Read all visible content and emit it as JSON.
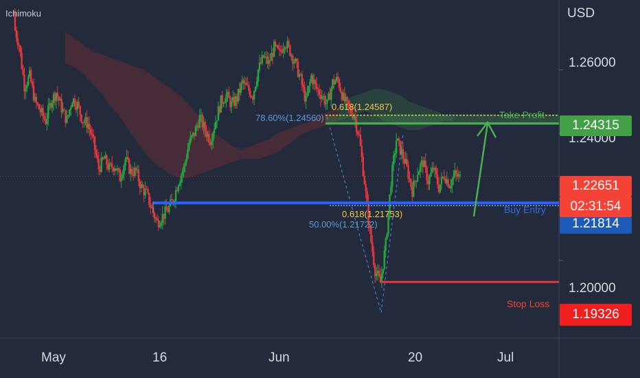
{
  "indicator_label": "Ichimoku",
  "currency": "USD",
  "chart_data": {
    "type": "candlestick",
    "symbol_unit": "USD",
    "indicator": "Ichimoku",
    "y_ticks": [
      "1.26000",
      "1.24000",
      "1.20000"
    ],
    "y_tick_values": [
      1.26,
      1.24,
      1.2
    ],
    "x_ticks": [
      "May",
      "16",
      "Jun",
      "20",
      "Jul"
    ],
    "ylim": [
      1.176,
      1.282
    ],
    "price_tags": {
      "take_profit": "1.24315",
      "current_price": "1.22651",
      "countdown": "02:31:54",
      "buy_entry": "1.21814",
      "stop_loss": "1.19326"
    },
    "levels": [
      {
        "name": "Take Profit",
        "value": 1.24315,
        "color": "#4caf50"
      },
      {
        "name": "Buy Entry",
        "value": 1.21814,
        "color": "#2962ff"
      },
      {
        "name": "Stop Loss",
        "value": 1.19326,
        "color": "#e53935"
      }
    ],
    "current_price": 1.22651,
    "annotations": {
      "fib_top": "0.618(1.24587)",
      "fib_top_pct": "78.60%(1.24560)",
      "fib_mid": "0.618(1.21753)",
      "fib_mid_pct": "50.00%(1.21722)",
      "take_profit": "Take Profit",
      "buy_entry": "Buy Entry",
      "stop_loss": "Stop Loss"
    },
    "close_path": [
      1.274,
      1.268,
      1.255,
      1.258,
      1.25,
      1.247,
      1.244,
      1.25,
      1.253,
      1.248,
      1.244,
      1.251,
      1.249,
      1.244,
      1.243,
      1.237,
      1.229,
      1.232,
      1.229,
      1.23,
      1.226,
      1.232,
      1.228,
      1.228,
      1.223,
      1.221,
      1.216,
      1.212,
      1.214,
      1.216,
      1.219,
      1.225,
      1.229,
      1.237,
      1.24,
      1.245,
      1.241,
      1.238,
      1.244,
      1.25,
      1.252,
      1.249,
      1.251,
      1.256,
      1.254,
      1.252,
      1.26,
      1.264,
      1.262,
      1.267,
      1.265,
      1.269,
      1.266,
      1.262,
      1.257,
      1.25,
      1.258,
      1.254,
      1.252,
      1.249,
      1.256,
      1.257,
      1.251,
      1.248,
      1.246,
      1.239,
      1.225,
      1.209,
      1.197,
      1.193,
      1.205,
      1.225,
      1.238,
      1.234,
      1.229,
      1.222,
      1.228,
      1.231,
      1.225,
      1.229,
      1.223,
      1.227,
      1.224,
      1.227,
      1.226
    ],
    "cloud_upper": [
      1.272,
      1.27,
      1.268,
      1.266,
      1.265,
      1.264,
      1.263,
      1.262,
      1.261,
      1.26,
      1.258,
      1.256,
      1.254,
      1.252,
      1.249,
      1.246,
      1.243,
      1.24,
      1.238,
      1.236,
      1.235,
      1.236,
      1.237,
      1.238,
      1.24,
      1.241,
      1.242,
      1.243,
      1.244,
      1.246,
      1.247,
      1.248,
      1.251,
      1.252,
      1.253,
      1.254,
      1.254,
      1.253,
      1.252,
      1.25,
      1.249,
      1.248,
      1.247,
      1.246,
      1.245
    ],
    "cloud_lower": [
      1.262,
      1.261,
      1.259,
      1.256,
      1.253,
      1.249,
      1.246,
      1.242,
      1.238,
      1.234,
      1.231,
      1.229,
      1.227,
      1.226,
      1.226,
      1.227,
      1.228,
      1.229,
      1.23,
      1.231,
      1.232,
      1.232,
      1.232,
      1.233,
      1.234,
      1.236,
      1.238,
      1.24,
      1.241,
      1.242,
      1.243,
      1.244,
      1.245,
      1.246,
      1.247,
      1.246,
      1.244,
      1.243,
      1.242,
      1.241,
      1.241,
      1.242,
      1.243,
      1.244,
      1.244
    ]
  }
}
